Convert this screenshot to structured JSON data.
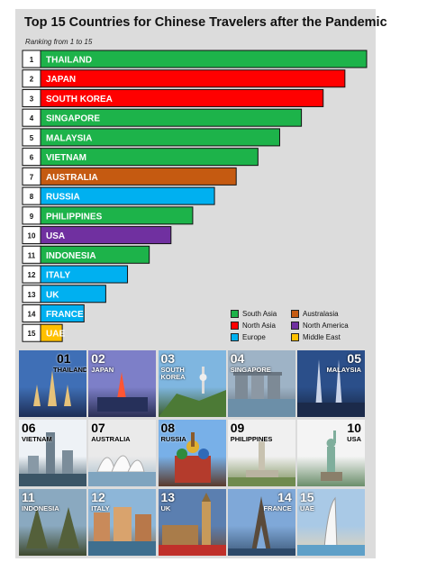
{
  "title": "Top 15 Countries for Chinese Travelers after the Pandemic",
  "subtitle": "Ranking from 1 to 15",
  "chart_data": {
    "type": "bar",
    "orientation": "horizontal",
    "title": "Top 15 Countries for Chinese Travelers after the Pandemic",
    "subtitle": "Ranking from 1 to 15",
    "xlabel": "",
    "ylabel": "",
    "grid": false,
    "legend_position": "bottom-right",
    "bars": [
      {
        "rank": "1",
        "label": "THAILAND",
        "value": 15,
        "region": "South Asia"
      },
      {
        "rank": "2",
        "label": "JAPAN",
        "value": 14,
        "region": "North Asia"
      },
      {
        "rank": "3",
        "label": "SOUTH KOREA",
        "value": 13,
        "region": "North Asia"
      },
      {
        "rank": "4",
        "label": "SINGAPORE",
        "value": 12,
        "region": "South Asia"
      },
      {
        "rank": "5",
        "label": "MALAYSIA",
        "value": 11,
        "region": "South Asia"
      },
      {
        "rank": "6",
        "label": "VIETNAM",
        "value": 10,
        "region": "South Asia"
      },
      {
        "rank": "7",
        "label": "AUSTRALIA",
        "value": 9,
        "region": "Australasia"
      },
      {
        "rank": "8",
        "label": "RUSSIA",
        "value": 8,
        "region": "Europe"
      },
      {
        "rank": "9",
        "label": "PHILIPPINES",
        "value": 7,
        "region": "South Asia"
      },
      {
        "rank": "10",
        "label": "USA",
        "value": 6,
        "region": "North America"
      },
      {
        "rank": "11",
        "label": "INDONESIA",
        "value": 5,
        "region": "South Asia"
      },
      {
        "rank": "12",
        "label": "ITALY",
        "value": 4,
        "region": "Europe"
      },
      {
        "rank": "13",
        "label": "UK",
        "value": 3,
        "region": "Europe"
      },
      {
        "rank": "14",
        "label": "FRANCE",
        "value": 2,
        "region": "Europe"
      },
      {
        "rank": "15",
        "label": "UAE",
        "value": 1,
        "region": "Middle East"
      }
    ],
    "legend": [
      {
        "name": "South Asia",
        "color": "#1db34a"
      },
      {
        "name": "Australasia",
        "color": "#c55a11"
      },
      {
        "name": "North Asia",
        "color": "#ff0000"
      },
      {
        "name": "North America",
        "color": "#7030a0"
      },
      {
        "name": "Europe",
        "color": "#00b0f0"
      },
      {
        "name": "Middle East",
        "color": "#ffc000"
      }
    ]
  },
  "photos": [
    {
      "num": "01",
      "name": "THAILAND",
      "icon": "temple-icon",
      "sky": "#3f6fb6",
      "ground": "#1d2d55",
      "style": "light"
    },
    {
      "num": "02",
      "name": "JAPAN",
      "icon": "tokyo-tower-icon",
      "sky": "#7d7fc8",
      "ground": "#2a2f55",
      "style": "dark"
    },
    {
      "num": "03",
      "name": "SOUTH\nKOREA",
      "icon": "seoul-tower-icon",
      "sky": "#7fb6e0",
      "ground": "#3b5d2a",
      "style": "dark"
    },
    {
      "num": "04",
      "name": "SINGAPORE",
      "icon": "merlion-icon",
      "sky": "#9eb3c6",
      "ground": "#5b6672",
      "style": "dark"
    },
    {
      "num": "05",
      "name": "MALAYSIA",
      "icon": "petronas-towers-icon",
      "sky": "#2b4f8a",
      "ground": "#16243f",
      "style": "dark"
    },
    {
      "num": "06",
      "name": "VIETNAM",
      "icon": "city-skyline-icon",
      "sky": "#eef2f6",
      "ground": "#4c6573",
      "style": "light"
    },
    {
      "num": "07",
      "name": "AUSTRALIA",
      "icon": "opera-house-icon",
      "sky": "#eaeaea",
      "ground": "#9fb8c9",
      "style": "light"
    },
    {
      "num": "08",
      "name": "RUSSIA",
      "icon": "st-basil-cathedral-icon",
      "sky": "#78b0e8",
      "ground": "#5a3a2c",
      "style": "light"
    },
    {
      "num": "09",
      "name": "PHILIPPINES",
      "icon": "monument-icon",
      "sky": "#f0f0f0",
      "ground": "#7a8f5a",
      "style": "light"
    },
    {
      "num": "10",
      "name": "USA",
      "icon": "statue-of-liberty-icon",
      "sky": "#f4f4f4",
      "ground": "#6b8e6b",
      "style": "light"
    },
    {
      "num": "11",
      "name": "INDONESIA",
      "icon": "temple-gate-icon",
      "sky": "#8aa9c0",
      "ground": "#3f4a2e",
      "style": "dark"
    },
    {
      "num": "12",
      "name": "ITALY",
      "icon": "venice-icon",
      "sky": "#8db6d8",
      "ground": "#8a6a45",
      "style": "dark"
    },
    {
      "num": "13",
      "name": "UK",
      "icon": "big-ben-icon",
      "sky": "#5b7fb0",
      "ground": "#6e4a35",
      "style": "dark"
    },
    {
      "num": "14",
      "name": "FRANCE",
      "icon": "eiffel-tower-icon",
      "sky": "#7fa8d8",
      "ground": "#3e5a7a",
      "style": "dark"
    },
    {
      "num": "15",
      "name": "UAE",
      "icon": "burj-al-arab-icon",
      "sky": "#a9c9e6",
      "ground": "#e6d6b8",
      "style": "dark"
    }
  ]
}
